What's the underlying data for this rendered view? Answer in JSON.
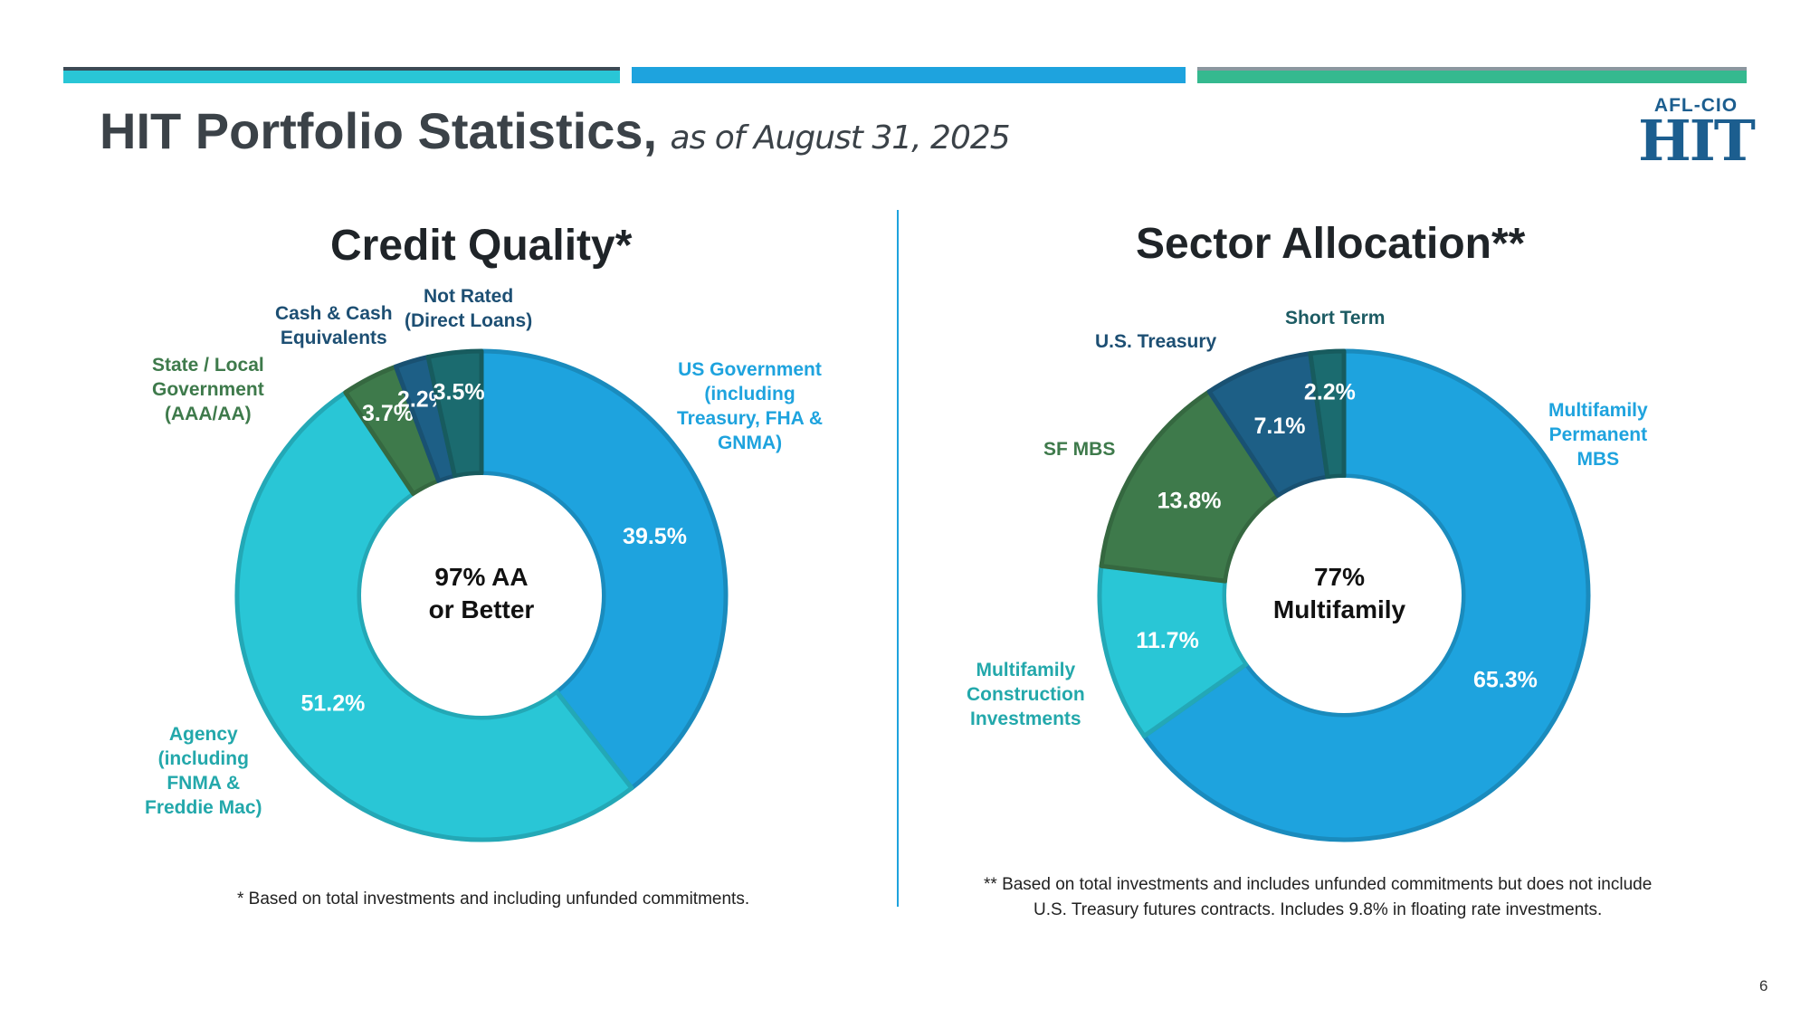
{
  "header": {
    "title": "HIT Portfolio Statistics,",
    "subtitle": "as of August 31, 2025"
  },
  "logo": {
    "top": "AFL-CIO",
    "main": "HIT"
  },
  "colors": {
    "light_blue": "#1ea3de",
    "teal": "#29c6d6",
    "green": "#3e7a4b",
    "navy": "#1d5f86",
    "dark_teal": "#1b6b6f",
    "title_gray": "#3b4248"
  },
  "chart_data": [
    {
      "type": "pie",
      "title": "Credit Quality*",
      "center_label": [
        "97% AA",
        "or Better"
      ],
      "slices": [
        {
          "label": [
            "US Government",
            "(including",
            "Treasury, FHA &",
            "GNMA)"
          ],
          "value": 39.5,
          "value_label": "39.5%",
          "color": "#1ea3de"
        },
        {
          "label": [
            "Agency",
            "(including",
            "FNMA &",
            "Freddie Mac)"
          ],
          "value": 51.2,
          "value_label": "51.2%",
          "color": "#29c6d6"
        },
        {
          "label": [
            "State / Local",
            "Government",
            "(AAA/AA)"
          ],
          "value": 3.7,
          "value_label": "3.7%",
          "color": "#3e7a4b"
        },
        {
          "label": [
            "Cash & Cash",
            "Equivalents"
          ],
          "value": 2.2,
          "value_label": "2.2%",
          "color": "#1d5f86"
        },
        {
          "label": [
            "Not Rated",
            "(Direct Loans)"
          ],
          "value": 3.5,
          "value_label": "3.5%",
          "color": "#1b6b6f"
        }
      ],
      "footnote": "* Based on total investments and including unfunded commitments."
    },
    {
      "type": "pie",
      "title": "Sector Allocation**",
      "center_label": [
        "77%",
        "Multifamily"
      ],
      "slices": [
        {
          "label": [
            "Multifamily",
            "Permanent",
            "MBS"
          ],
          "value": 65.3,
          "value_label": "65.3%",
          "color": "#1ea3de"
        },
        {
          "label": [
            "Multifamily",
            "Construction",
            "Investments"
          ],
          "value": 11.7,
          "value_label": "11.7%",
          "color": "#29c6d6"
        },
        {
          "label": [
            "SF MBS"
          ],
          "value": 13.8,
          "value_label": "13.8%",
          "color": "#3e7a4b"
        },
        {
          "label": [
            "U.S. Treasury"
          ],
          "value": 7.1,
          "value_label": "7.1%",
          "color": "#1d5f86"
        },
        {
          "label": [
            "Short Term"
          ],
          "value": 2.2,
          "value_label": "2.2%",
          "color": "#1b6b6f"
        }
      ],
      "footnote": [
        "** Based on total investments and includes unfunded commitments but does not include",
        "U.S. Treasury futures contracts. Includes 9.8% in floating rate investments."
      ]
    }
  ],
  "page_number": "6"
}
